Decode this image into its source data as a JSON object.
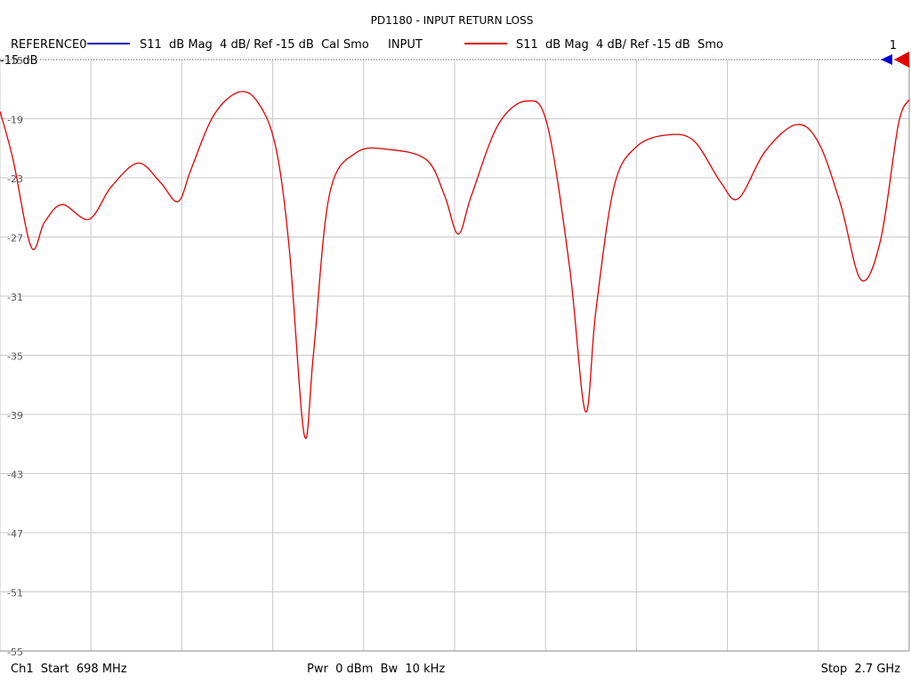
{
  "chart_data": {
    "type": "line",
    "title": "PD1180 - INPUT RETURN LOSS",
    "reference_trace": {
      "name": "REFERENCE0",
      "description": "S11  dB Mag  4 dB/ Ref -15 dB  Cal Smo",
      "color": "#0000d0"
    },
    "reference_label": "-15 dB",
    "marker_label": "1",
    "footer": {
      "start": "Ch1  Start  698 MHz",
      "power": "Pwr  0 dBm  Bw  10 kHz",
      "stop": "Stop  2.7 GHz"
    },
    "x": [
      698,
      727,
      767,
      796,
      835,
      894,
      943,
      1002,
      1051,
      1090,
      1119,
      1168,
      1223,
      1266,
      1305,
      1335,
      1368,
      1388,
      1423,
      1482,
      1560,
      1638,
      1677,
      1707,
      1736,
      1795,
      1858,
      1903,
      1952,
      1987,
      2010,
      2050,
      2099,
      2167,
      2226,
      2285,
      2324,
      2383,
      2451,
      2500,
      2549,
      2594,
      2637,
      2676,
      2700
    ],
    "series": [
      {
        "name": "INPUT",
        "description": "S11  dB Mag  4 dB/ Ref -15 dB  Smo",
        "color": "#e00000",
        "values": [
          -18.5,
          -21.8,
          -27.7,
          -26.0,
          -24.8,
          -25.8,
          -23.6,
          -22.0,
          -23.3,
          -24.6,
          -22.4,
          -18.8,
          -17.2,
          -17.9,
          -20.9,
          -27.8,
          -40.4,
          -35.0,
          -24.2,
          -21.3,
          -21.1,
          -21.8,
          -24.2,
          -26.8,
          -24.2,
          -19.4,
          -17.8,
          -19.4,
          -29.0,
          -38.8,
          -32.0,
          -23.6,
          -20.9,
          -20.1,
          -20.5,
          -23.3,
          -24.4,
          -21.2,
          -19.4,
          -20.6,
          -24.8,
          -29.9,
          -27.2,
          -19.4,
          -17.7
        ]
      }
    ],
    "xlim": [
      698,
      2700
    ],
    "ylim": [
      -55,
      -15
    ],
    "yticks": [
      -15,
      -19,
      -23,
      -27,
      -31,
      -35,
      -39,
      -43,
      -47,
      -51,
      -55
    ],
    "grid": true
  }
}
